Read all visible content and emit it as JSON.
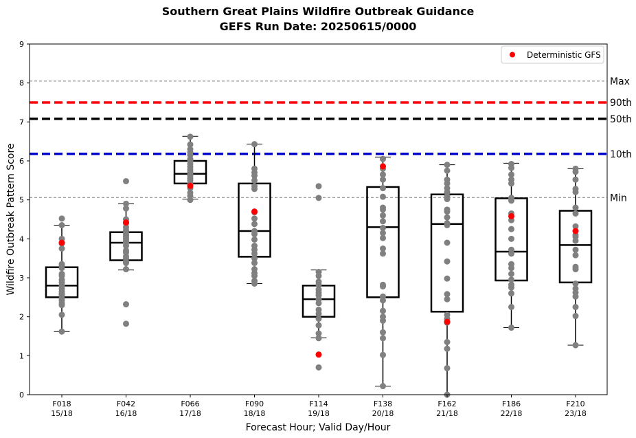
{
  "chart_data": {
    "type": "box",
    "title": "Southern Great Plains Wildfire Outbreak Guidance",
    "subtitle": "GEFS Run Date: 20250615/0000",
    "xlabel": "Forecast Hour; Valid Day/Hour",
    "ylabel": "Wildfire Outbreak Pattern Score",
    "ylim": [
      0,
      9
    ],
    "yticks": [
      0,
      1,
      2,
      3,
      4,
      5,
      6,
      7,
      8,
      9
    ],
    "categories": [
      "F018\n15/18",
      "F042\n16/18",
      "F066\n17/18",
      "F090\n18/18",
      "F114\n19/18",
      "F138\n20/18",
      "F162\n21/18",
      "F186\n22/18",
      "F210\n23/18"
    ],
    "reference_lines": [
      {
        "label": "Max",
        "value": 8.05,
        "color": "#808080",
        "style": "thin-dashed"
      },
      {
        "label": "90th",
        "value": 7.5,
        "color": "#ff0000",
        "style": "thick-dashed"
      },
      {
        "label": "50th",
        "value": 7.08,
        "color": "#000000",
        "style": "thick-dashed"
      },
      {
        "label": "10th",
        "value": 6.18,
        "color": "#0000cc",
        "style": "thick-dashed"
      },
      {
        "label": "Min",
        "value": 5.06,
        "color": "#808080",
        "style": "thin-dashed"
      }
    ],
    "boxes": [
      {
        "whislo": 1.62,
        "q1": 2.5,
        "med": 2.8,
        "q3": 3.27,
        "whishi": 4.35
      },
      {
        "whislo": 3.2,
        "q1": 3.45,
        "med": 3.9,
        "q3": 4.17,
        "whishi": 4.9
      },
      {
        "whislo": 5.02,
        "q1": 5.42,
        "med": 5.67,
        "q3": 6.0,
        "whishi": 6.63
      },
      {
        "whislo": 2.85,
        "q1": 3.54,
        "med": 4.2,
        "q3": 5.42,
        "whishi": 6.43
      },
      {
        "whislo": 1.46,
        "q1": 2.0,
        "med": 2.45,
        "q3": 2.8,
        "whishi": 3.2
      },
      {
        "whislo": 0.22,
        "q1": 2.5,
        "med": 4.3,
        "q3": 5.33,
        "whishi": 6.1
      },
      {
        "whislo": 0.0,
        "q1": 2.13,
        "med": 4.38,
        "q3": 5.14,
        "whishi": 5.9
      },
      {
        "whislo": 1.72,
        "q1": 2.93,
        "med": 3.67,
        "q3": 5.04,
        "whishi": 5.94
      },
      {
        "whislo": 1.27,
        "q1": 2.88,
        "med": 3.84,
        "q3": 4.72,
        "whishi": 5.8
      }
    ],
    "members": [
      [
        1.62,
        2.05,
        2.3,
        2.35,
        2.42,
        2.48,
        2.55,
        2.6,
        2.65,
        2.72,
        2.8,
        2.88,
        2.95,
        3.05,
        3.1,
        3.25,
        3.3,
        3.35,
        3.75,
        3.88,
        4.0,
        4.35,
        4.52
      ],
      [
        1.82,
        2.32,
        3.22,
        3.38,
        3.42,
        3.5,
        3.55,
        3.65,
        3.7,
        3.82,
        3.9,
        3.95,
        4.0,
        4.05,
        4.1,
        4.15,
        4.22,
        4.3,
        4.4,
        4.5,
        4.78,
        4.9,
        5.48
      ],
      [
        5.0,
        5.1,
        5.18,
        5.3,
        5.42,
        5.5,
        5.55,
        5.62,
        5.68,
        5.72,
        5.78,
        5.85,
        5.92,
        6.0,
        6.05,
        6.15,
        6.22,
        6.3,
        6.42,
        6.62
      ],
      [
        2.85,
        2.92,
        3.05,
        3.12,
        3.22,
        3.38,
        3.5,
        3.62,
        3.72,
        3.82,
        3.98,
        4.12,
        4.2,
        4.38,
        4.52,
        4.68,
        5.28,
        5.35,
        5.5,
        5.62,
        5.7,
        5.8,
        6.43
      ],
      [
        0.7,
        1.45,
        1.57,
        1.78,
        1.95,
        2.08,
        2.18,
        2.35,
        2.45,
        2.55,
        2.62,
        2.7,
        2.82,
        2.9,
        3.05,
        3.15,
        5.05,
        5.35
      ],
      [
        0.22,
        1.02,
        1.45,
        1.6,
        1.9,
        2.0,
        2.15,
        2.42,
        2.52,
        2.78,
        2.82,
        3.62,
        3.75,
        4.02,
        4.15,
        4.28,
        4.45,
        4.6,
        4.75,
        4.8,
        5.08,
        5.3,
        5.52,
        5.65,
        5.8,
        6.05
      ],
      [
        0.0,
        0.68,
        1.18,
        1.35,
        1.85,
        1.95,
        2.05,
        2.45,
        2.58,
        2.98,
        3.42,
        3.9,
        4.35,
        4.4,
        4.55,
        4.7,
        4.75,
        5.02,
        5.1,
        5.2,
        5.3,
        5.42,
        5.52,
        5.75,
        5.9
      ],
      [
        1.72,
        2.25,
        2.6,
        2.75,
        2.82,
        2.95,
        3.1,
        3.25,
        3.35,
        3.62,
        3.72,
        4.0,
        4.25,
        4.48,
        4.65,
        4.98,
        5.05,
        5.42,
        5.52,
        5.65,
        5.82,
        5.92
      ],
      [
        1.27,
        2.02,
        2.25,
        2.52,
        2.62,
        2.72,
        2.85,
        3.22,
        3.28,
        3.58,
        3.72,
        3.95,
        4.05,
        4.1,
        4.2,
        4.32,
        4.65,
        4.8,
        5.2,
        5.28,
        5.52,
        5.72,
        5.8
      ]
    ],
    "deterministic": {
      "name": "Deterministic GFS",
      "values": [
        3.9,
        4.42,
        5.36,
        4.7,
        1.03,
        5.86,
        1.87,
        4.58,
        4.2
      ],
      "color": "#ff0000"
    },
    "member_color": "#808080",
    "legend_position": "top-right",
    "grid": false
  }
}
